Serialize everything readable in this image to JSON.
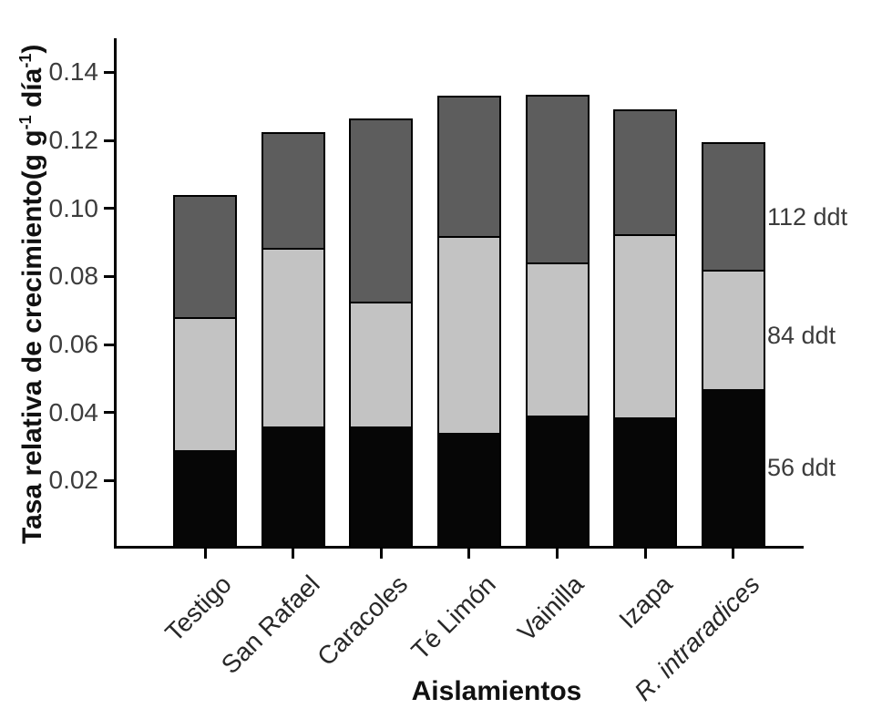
{
  "figure": {
    "background": "#ffffff",
    "axis_color": "#000000"
  },
  "chart_data": {
    "type": "bar",
    "subtype": "stacked",
    "title": "",
    "xlabel": "Aislamientos",
    "ylabel": "Tasa relativa de crecimiento(g g⁻¹ día⁻¹)",
    "ylabel_parts": [
      {
        "text": "Tasa relativa de crecimiento(g g",
        "sup": false
      },
      {
        "text": "-1",
        "sup": true
      },
      {
        "text": " día",
        "sup": false
      },
      {
        "text": "-1",
        "sup": true
      },
      {
        "text": ")",
        "sup": false
      }
    ],
    "categories": [
      {
        "label": "Testigo",
        "italic": false
      },
      {
        "label": "San Rafael",
        "italic": false
      },
      {
        "label": "Caracoles",
        "italic": false
      },
      {
        "label": "Té Limón",
        "italic": false
      },
      {
        "label": "Vainilla",
        "italic": false
      },
      {
        "label": "Izapa",
        "italic": false
      },
      {
        "label": "R. intraradices",
        "italic": true
      }
    ],
    "series": [
      {
        "name": "56 ddt",
        "color": "#060606",
        "values": [
          0.029,
          0.036,
          0.036,
          0.034,
          0.039,
          0.0385,
          0.047
        ]
      },
      {
        "name": "84 ddt",
        "color": "#c3c3c3",
        "values": [
          0.039,
          0.0525,
          0.0365,
          0.058,
          0.045,
          0.054,
          0.035
        ]
      },
      {
        "name": "112 ddt",
        "color": "#5d5d5d",
        "values": [
          0.036,
          0.034,
          0.054,
          0.041,
          0.0495,
          0.0365,
          0.0375
        ]
      }
    ],
    "stack_order_bottom_to_top": [
      "56 ddt",
      "84 ddt",
      "112 ddt"
    ],
    "totals": [
      0.104,
      0.1225,
      0.1265,
      0.133,
      0.1335,
      0.129,
      0.1195
    ],
    "ylim": [
      0,
      0.15
    ],
    "y_ticks": [
      0.02,
      0.04,
      0.06,
      0.08,
      0.1,
      0.12,
      0.14
    ],
    "y_tick_labels": [
      "0.02",
      "0.04",
      "0.06",
      "0.08",
      "0.10",
      "0.12",
      "0.14"
    ],
    "grid": false,
    "legend_position": "right-annotations",
    "annotations": [
      {
        "label": "112 ddt",
        "y_value": 0.0975
      },
      {
        "label": "84 ddt",
        "y_value": 0.0627
      },
      {
        "label": "56 ddt",
        "y_value": 0.0238
      }
    ]
  }
}
